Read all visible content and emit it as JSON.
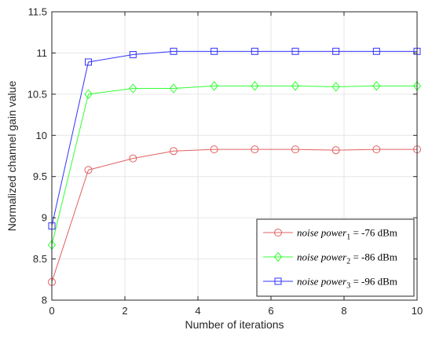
{
  "chart_data": {
    "type": "line",
    "xlabel": "Number of iterations",
    "ylabel": "Normalized channel gain value",
    "xlim": [
      0,
      10
    ],
    "ylim": [
      8,
      11.5
    ],
    "xticks": [
      "0",
      "2",
      "4",
      "6",
      "8",
      "10"
    ],
    "yticks": [
      "8",
      "8.5",
      "9",
      "9.5",
      "10",
      "10.5",
      "11",
      "11.5"
    ],
    "grid": true,
    "legend_position": "bottom-right",
    "x": [
      0,
      1,
      2.2222,
      3.3333,
      4.4444,
      5.5556,
      6.6667,
      7.7778,
      8.8889,
      10
    ],
    "series": [
      {
        "name": "noise power 1 = -76 dBm",
        "name_main": "noise power",
        "name_sub": "1",
        "name_value": " = -76 dBm",
        "color": "#e06060",
        "marker": "circle",
        "values": [
          8.22,
          9.58,
          9.72,
          9.81,
          9.83,
          9.83,
          9.83,
          9.82,
          9.83,
          9.83
        ]
      },
      {
        "name": "noise power2 = -86 dBm",
        "name_main": "noise power",
        "name_sub": "2",
        "name_value": " = -86 dBm",
        "color": "#33ff33",
        "marker": "diamond",
        "values": [
          8.67,
          10.5,
          10.57,
          10.57,
          10.6,
          10.6,
          10.6,
          10.59,
          10.6,
          10.6
        ]
      },
      {
        "name": "noise power3 = -96 dBm",
        "name_main": "noise power",
        "name_sub": "3",
        "name_value": " = -96 dBm",
        "color": "#3333ff",
        "marker": "square",
        "values": [
          8.9,
          10.89,
          10.98,
          11.02,
          11.02,
          11.02,
          11.02,
          11.02,
          11.02,
          11.02
        ]
      }
    ]
  }
}
